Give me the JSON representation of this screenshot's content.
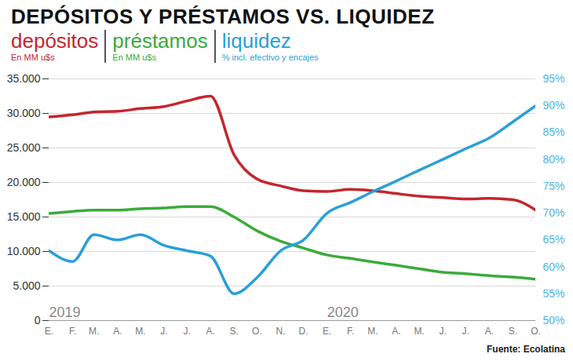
{
  "chart_data": {
    "type": "line",
    "title": "DEPÓSITOS Y PRÉSTAMOS VS. LIQUIDEZ",
    "source": "Fuente: Ecolatina",
    "x": [
      "2019-01",
      "2019-02",
      "2019-03",
      "2019-04",
      "2019-05",
      "2019-06",
      "2019-07",
      "2019-08",
      "2019-09",
      "2019-10",
      "2019-11",
      "2019-12",
      "2020-01",
      "2020-02",
      "2020-03",
      "2020-04",
      "2020-05",
      "2020-06",
      "2020-07",
      "2020-08",
      "2020-09",
      "2020-10"
    ],
    "series": [
      {
        "name": "depósitos",
        "subtitle": "En MM u$s",
        "color": "#c4262e",
        "values": [
          29500,
          29800,
          30200,
          30300,
          30700,
          31000,
          31800,
          32500,
          24000,
          20500,
          19500,
          18800,
          18700,
          19000,
          18800,
          18400,
          18000,
          17800,
          17600,
          17700,
          17500,
          16000
        ]
      },
      {
        "name": "préstamos",
        "subtitle": "En MM u$s",
        "color": "#3aab3a",
        "values": [
          15500,
          15800,
          16000,
          16000,
          16200,
          16300,
          16500,
          16500,
          15000,
          13000,
          11500,
          10500,
          9500,
          9000,
          8500,
          8000,
          7500,
          7000,
          6800,
          6500,
          6300,
          6000
        ]
      },
      {
        "name": "liquidez",
        "subtitle": "% incl. efectivo y encajes",
        "color": "#2a9fd8",
        "axis": "y2",
        "values": [
          63,
          61,
          66,
          65,
          66,
          64,
          63,
          62,
          55,
          58,
          63,
          65,
          70,
          72,
          74,
          76,
          78,
          80,
          82,
          84,
          87,
          90
        ]
      }
    ],
    "xlim": [
      "2019-01",
      "2020-10"
    ],
    "xticks": [
      {
        "value": "2019-01",
        "label": "E."
      },
      {
        "value": "2019-02",
        "label": "F."
      },
      {
        "value": "2019-03",
        "label": "M."
      },
      {
        "value": "2019-04",
        "label": "A."
      },
      {
        "value": "2019-05",
        "label": "M."
      },
      {
        "value": "2019-06",
        "label": "J."
      },
      {
        "value": "2019-07",
        "label": "J."
      },
      {
        "value": "2019-08",
        "label": "A."
      },
      {
        "value": "2019-09",
        "label": "S."
      },
      {
        "value": "2019-10",
        "label": "O."
      },
      {
        "value": "2019-11",
        "label": "N."
      },
      {
        "value": "2019-12",
        "label": "D."
      },
      {
        "value": "2020-01",
        "label": "E."
      },
      {
        "value": "2020-02",
        "label": "F."
      },
      {
        "value": "2020-03",
        "label": "M."
      },
      {
        "value": "2020-04",
        "label": "A."
      },
      {
        "value": "2020-05",
        "label": "M."
      },
      {
        "value": "2020-06",
        "label": "J."
      },
      {
        "value": "2020-07",
        "label": "J."
      },
      {
        "value": "2020-08",
        "label": "A."
      },
      {
        "value": "2020-09",
        "label": "S."
      },
      {
        "value": "2020-10",
        "label": "O."
      }
    ],
    "annotations": [
      {
        "x": "2019-01",
        "text": "2019"
      },
      {
        "x": "2020-01",
        "text": "2020"
      }
    ],
    "ylim": [
      0,
      35000
    ],
    "yticks": [
      0,
      {
        "value": 5000,
        "label": "5.000"
      },
      {
        "value": 10000,
        "label": "10.000"
      },
      {
        "value": 15000,
        "label": "15.000"
      },
      {
        "value": 20000,
        "label": "20.000"
      },
      {
        "value": 25000,
        "label": "25.000"
      },
      {
        "value": 30000,
        "label": "30.000"
      },
      {
        "value": 35000,
        "label": "35.000"
      }
    ],
    "y2lim": [
      50,
      95
    ],
    "y2ticks": [
      {
        "value": 50,
        "label": "50%"
      },
      {
        "value": 55,
        "label": "55%"
      },
      {
        "value": 60,
        "label": "60%"
      },
      {
        "value": 65,
        "label": "65%"
      },
      {
        "value": 70,
        "label": "70%"
      },
      {
        "value": 75,
        "label": "75%"
      },
      {
        "value": 80,
        "label": "80%"
      },
      {
        "value": 85,
        "label": "85%"
      },
      {
        "value": 90,
        "label": "90%"
      },
      {
        "value": 95,
        "label": "95%"
      }
    ],
    "grid": true
  }
}
